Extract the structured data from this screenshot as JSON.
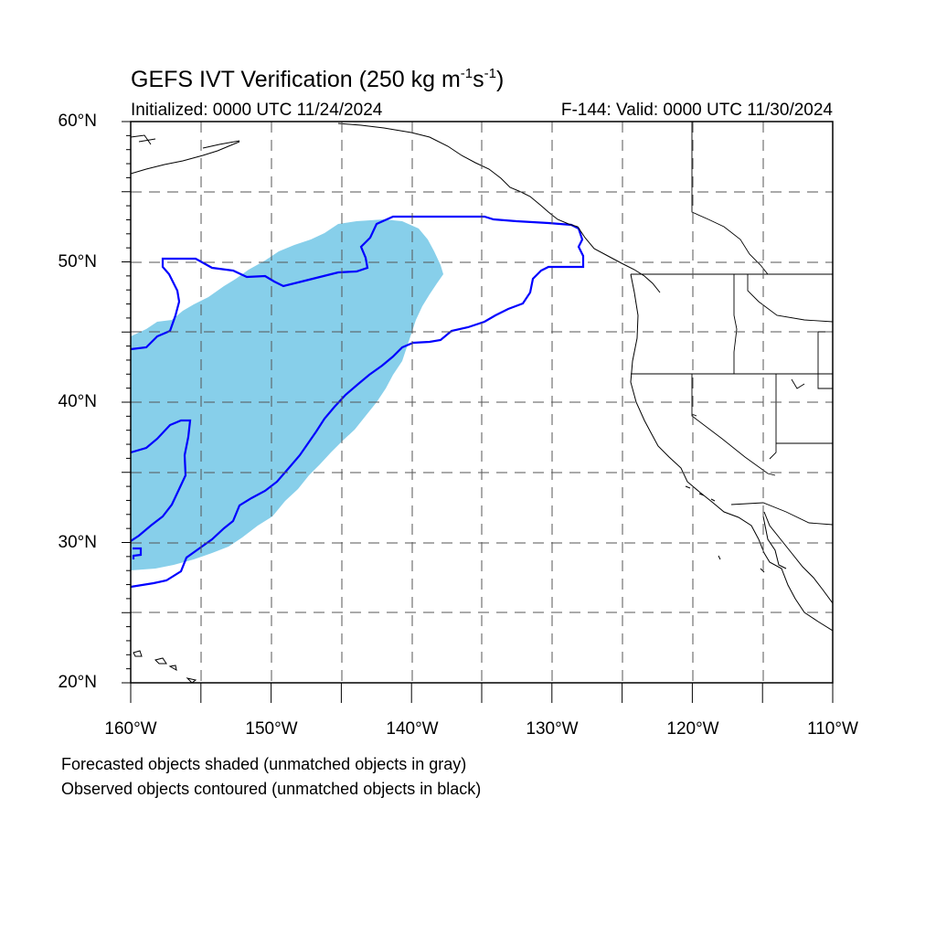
{
  "title": {
    "main": "GEFS IVT Verification (250 kg m",
    "sup1": "-1",
    "mid": "s",
    "sup2": "-1",
    "end": ")"
  },
  "initialized": "Initialized: 0000 UTC 11/24/2024",
  "valid": "F-144: Valid: 0000 UTC 11/30/2024",
  "map": {
    "lon_range": [
      -160,
      -110
    ],
    "lat_range": [
      20,
      60
    ],
    "grid": "dashed",
    "grid_lon_step": 5,
    "grid_lat_step": 5,
    "lat_labels": [
      {
        "lat": 60,
        "text": "60°N"
      },
      {
        "lat": 50,
        "text": "50°N"
      },
      {
        "lat": 40,
        "text": "40°N"
      },
      {
        "lat": 30,
        "text": "30°N"
      },
      {
        "lat": 20,
        "text": "20°N"
      }
    ],
    "lon_labels": [
      {
        "lon": -160,
        "text": "160°W"
      },
      {
        "lon": -150,
        "text": "150°W"
      },
      {
        "lon": -140,
        "text": "140°W"
      },
      {
        "lon": -130,
        "text": "130°W"
      },
      {
        "lon": -120,
        "text": "120°W"
      },
      {
        "lon": -110,
        "text": "110°W"
      }
    ],
    "forecast_fill_color": "#87cfea",
    "observed_contour_color": "#0000ff",
    "coast_color": "#000000"
  },
  "notes": {
    "line1": "Forecasted objects shaded (unmatched objects in gray)",
    "line2": "Observed objects contoured (unmatched objects in black)"
  }
}
